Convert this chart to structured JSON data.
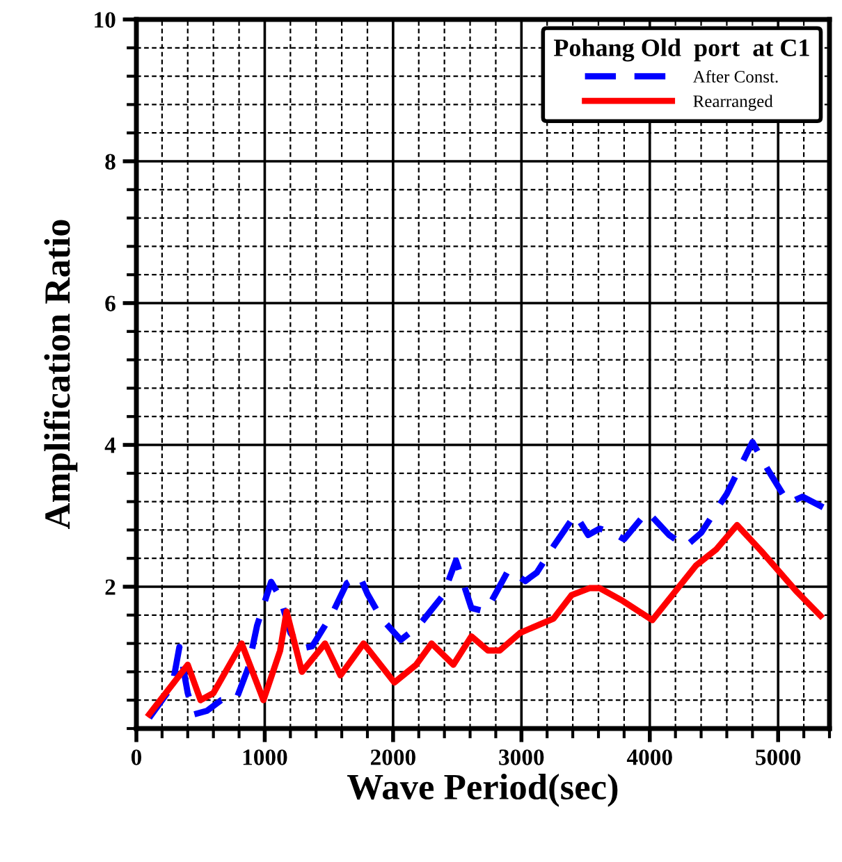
{
  "chart_data": {
    "type": "line",
    "xlabel": "Wave Period(sec)",
    "ylabel": "Amplification Ratio",
    "legend_title": "Pohang Old  port  at C1",
    "xlim": [
      0,
      5400
    ],
    "ylim": [
      0,
      10
    ],
    "xticks": [
      0,
      1000,
      2000,
      3000,
      4000,
      5000
    ],
    "yticks": [
      2,
      4,
      6,
      8,
      10
    ],
    "grid": true,
    "legend": "top right",
    "series": [
      {
        "name": "After Const.",
        "color": "#0000ff",
        "line_style": "dashed",
        "x": [
          100,
          280,
          335,
          400,
          450,
          550,
          660,
          780,
          870,
          940,
          1050,
          1120,
          1200,
          1290,
          1370,
          1520,
          1640,
          1740,
          1800,
          1910,
          2060,
          2200,
          2390,
          2490,
          2610,
          2720,
          2780,
          2900,
          3030,
          3120,
          3250,
          3420,
          3520,
          3610,
          3710,
          3800,
          3980,
          4150,
          4280,
          4400,
          4600,
          4800,
          4920,
          5080,
          5190,
          5350
        ],
        "values": [
          0.15,
          0.6,
          1.15,
          0.5,
          0.2,
          0.25,
          0.4,
          0.42,
          0.85,
          1.45,
          2.07,
          1.85,
          1.35,
          1.13,
          1.16,
          1.6,
          2.05,
          2.15,
          1.9,
          1.55,
          1.25,
          1.45,
          1.88,
          2.37,
          1.7,
          1.65,
          1.84,
          2.24,
          2.08,
          2.2,
          2.57,
          3.02,
          2.73,
          2.82,
          2.76,
          2.67,
          3.06,
          2.73,
          2.57,
          2.76,
          3.31,
          4.04,
          3.65,
          3.18,
          3.27,
          3.12
        ]
      },
      {
        "name": "Rearranged",
        "color": "#ff0000",
        "line_style": "solid",
        "x": [
          100,
          400,
          500,
          600,
          820,
          990,
          1120,
          1170,
          1290,
          1470,
          1590,
          1770,
          2010,
          2180,
          2300,
          2470,
          2610,
          2740,
          2830,
          2990,
          3250,
          3390,
          3530,
          3610,
          3790,
          4020,
          4360,
          4520,
          4680,
          4870,
          5140,
          5330
        ],
        "values": [
          0.2,
          0.9,
          0.4,
          0.5,
          1.2,
          0.4,
          1.1,
          1.65,
          0.8,
          1.2,
          0.75,
          1.2,
          0.65,
          0.9,
          1.2,
          0.9,
          1.3,
          1.1,
          1.1,
          1.35,
          1.55,
          1.88,
          1.98,
          1.98,
          1.8,
          1.53,
          2.3,
          2.53,
          2.87,
          2.5,
          1.94,
          1.59
        ]
      }
    ]
  }
}
